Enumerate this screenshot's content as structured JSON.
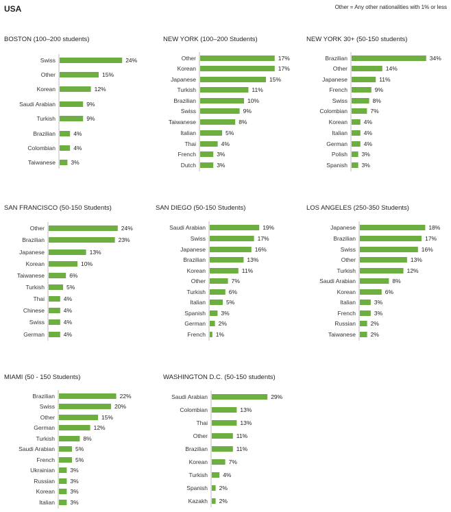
{
  "header": {
    "title": "USA",
    "note": "Other = Any other nationalities with 1% or less"
  },
  "colors": {
    "bar": "#6cae3f",
    "axis": "#bbbbbb"
  },
  "chart_data": [
    {
      "type": "bar",
      "orientation": "horizontal",
      "title": "BOSTON (100–200 students)",
      "categories": [
        "Swiss",
        "Other",
        "Korean",
        "Saudi Arabian",
        "Turkish",
        "Brazilian",
        "Colombian",
        "Taiwanese"
      ],
      "values": [
        24,
        15,
        12,
        9,
        9,
        4,
        4,
        3
      ],
      "value_format": "percent"
    },
    {
      "type": "bar",
      "orientation": "horizontal",
      "title": "NEW YORK (100–200 Students)",
      "categories": [
        "Other",
        "Korean",
        "Japanese",
        "Turkish",
        "Brazilian",
        "Swiss",
        "Taiwanese",
        "Italian",
        "Thai",
        "French",
        "Dutch"
      ],
      "values": [
        17,
        17,
        15,
        11,
        10,
        9,
        8,
        5,
        4,
        3,
        3
      ],
      "value_format": "percent"
    },
    {
      "type": "bar",
      "orientation": "horizontal",
      "title": "NEW YORK 30+ (50-150 students)",
      "categories": [
        "Brazilian",
        "Other",
        "Japanese",
        "French",
        "Swiss",
        "Colombian",
        "Korean",
        "Italian",
        "German",
        "Polish",
        "Spanish"
      ],
      "values": [
        34,
        14,
        11,
        9,
        8,
        7,
        4,
        4,
        4,
        3,
        3
      ],
      "value_format": "percent"
    },
    {
      "type": "bar",
      "orientation": "horizontal",
      "title": "SAN FRANCISCO (50-150 Students)",
      "categories": [
        "Other",
        "Brazilian",
        "Japanese",
        "Korean",
        "Taiwanese",
        "Turkish",
        "Thai",
        "Chinese",
        "Swiss",
        "German"
      ],
      "values": [
        24,
        23,
        13,
        10,
        6,
        5,
        4,
        4,
        4,
        4
      ],
      "value_format": "percent"
    },
    {
      "type": "bar",
      "orientation": "horizontal",
      "title": "SAN DIEGO (50-150 Students)",
      "categories": [
        "Saudi Arabian",
        "Swiss",
        "Japanese",
        "Brazilian",
        "Korean",
        "Other",
        "Turkish",
        "Italian",
        "Spanish",
        "German",
        "French"
      ],
      "values": [
        19,
        17,
        16,
        13,
        11,
        7,
        6,
        5,
        3,
        2,
        1
      ],
      "value_format": "percent"
    },
    {
      "type": "bar",
      "orientation": "horizontal",
      "title": "LOS ANGELES (250-350 Students)",
      "categories": [
        "Japanese",
        "Brazilian",
        "Swiss",
        "Other",
        "Turkish",
        "Saudi Arabian",
        "Korean",
        "Italian",
        "French",
        "Russian",
        "Taiwanese"
      ],
      "values": [
        18,
        17,
        16,
        13,
        12,
        8,
        6,
        3,
        3,
        2,
        2
      ],
      "value_format": "percent"
    },
    {
      "type": "bar",
      "orientation": "horizontal",
      "title": "MIAMI (50 - 150 Students)",
      "categories": [
        "Brazilian",
        "Swiss",
        "Other",
        "German",
        "Turkish",
        "Saudi Arabian",
        "French",
        "Ukrainian",
        "Russian",
        "Korean",
        "Italian"
      ],
      "values": [
        22,
        20,
        15,
        12,
        8,
        5,
        5,
        3,
        3,
        3,
        3
      ],
      "value_format": "percent"
    },
    {
      "type": "bar",
      "orientation": "horizontal",
      "title": "WASHINGTON D.C. (50-150 students)",
      "categories": [
        "Saudi Arabian",
        "Colombian",
        "Thai",
        "Other",
        "Brazilian",
        "Korean",
        "Turkish",
        "Spanish",
        "Kazakh"
      ],
      "values": [
        29,
        13,
        13,
        11,
        11,
        7,
        4,
        2,
        2
      ],
      "value_format": "percent"
    }
  ]
}
